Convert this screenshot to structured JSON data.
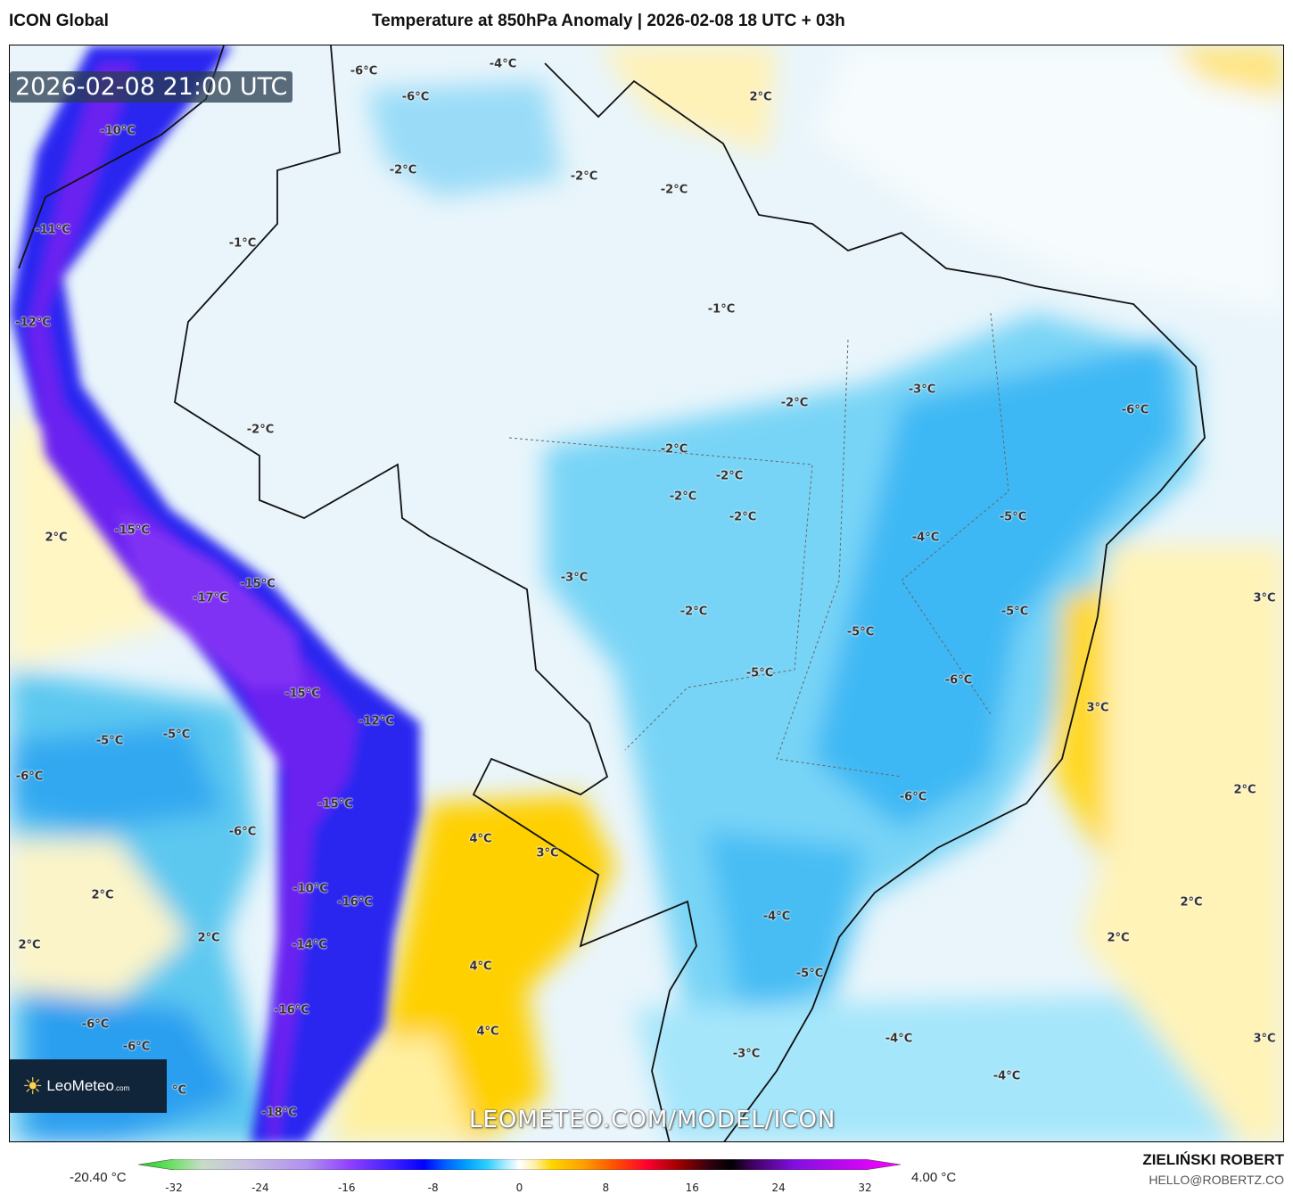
{
  "header": {
    "model": "ICON Global",
    "title": "Temperature at 850hPa Anomaly | 2026-02-08 18 UTC + 03h"
  },
  "map": {
    "valid_time": "2026-02-08 21:00 UTC",
    "watermark": "LEOMETEO.COM/MODEL/ICON",
    "logo": {
      "name": "LeoMeteo",
      "suffix": ".com"
    },
    "contour_labels": [
      "-6°C",
      "-4°C",
      "-6°C",
      "2°C",
      "-10°C",
      "-2°C",
      "-2°C",
      "-2°C",
      "-11°C",
      "-1°C",
      "-12°C",
      "-1°C",
      "-3°C",
      "-6°C",
      "-2°C",
      "-2°C",
      "-2°C",
      "-2°C",
      "-2°C",
      "-2°C",
      "2°C",
      "-15°C",
      "-5°C",
      "-4°C",
      "-3°C",
      "-15°C",
      "-17°C",
      "3°C",
      "-5°C",
      "-2°C",
      "-5°C",
      "-5°C",
      "-6°C",
      "-15°C",
      "-12°C",
      "3°C",
      "-5°C",
      "-5°C",
      "-6°C",
      "-15°C",
      "-6°C",
      "2°C",
      "-6°C",
      "4°C",
      "3°C",
      "2°C",
      "-10°C",
      "-16°C",
      "2°C",
      "-4°C",
      "2°C",
      "2°C",
      "2°C",
      "-14°C",
      "4°C",
      "-5°C",
      "-16°C",
      "-6°C",
      "-6°C",
      "4°C",
      "-4°C",
      "3°C",
      "-3°C",
      "-4°C",
      "°C",
      "-18°C"
    ]
  },
  "colorbar": {
    "min_label": "-20.40 °C",
    "max_label": "4.00 °C",
    "ticks": [
      "-32",
      "-24",
      "-16",
      "-8",
      "0",
      "8",
      "16",
      "24",
      "32"
    ],
    "range": [
      -36,
      36
    ],
    "stops": [
      [
        -36,
        "#22cc22"
      ],
      [
        -33,
        "#66e060"
      ],
      [
        -30,
        "#c8dcc8"
      ],
      [
        -26,
        "#c8c0e0"
      ],
      [
        -20,
        "#b090f0"
      ],
      [
        -16,
        "#9040ff"
      ],
      [
        -12,
        "#4020ff"
      ],
      [
        -9,
        "#0000ff"
      ],
      [
        -7,
        "#0060ff"
      ],
      [
        -5,
        "#00a0ff"
      ],
      [
        -3,
        "#30d0ff"
      ],
      [
        -1.5,
        "#a0e8ff"
      ],
      [
        0,
        "#ffffff"
      ],
      [
        1.5,
        "#fff0a0"
      ],
      [
        3,
        "#ffd700"
      ],
      [
        6,
        "#ffa000"
      ],
      [
        9,
        "#ff5000"
      ],
      [
        12,
        "#ff0030"
      ],
      [
        15,
        "#a00000"
      ],
      [
        18,
        "#300010"
      ],
      [
        20,
        "#000000"
      ],
      [
        22,
        "#400060"
      ],
      [
        26,
        "#8010e0"
      ],
      [
        36,
        "#ff00ff"
      ]
    ]
  },
  "author": {
    "name": "ZIELIŃSKI ROBERT",
    "email": "HELLO@ROBERTZ.CO"
  }
}
